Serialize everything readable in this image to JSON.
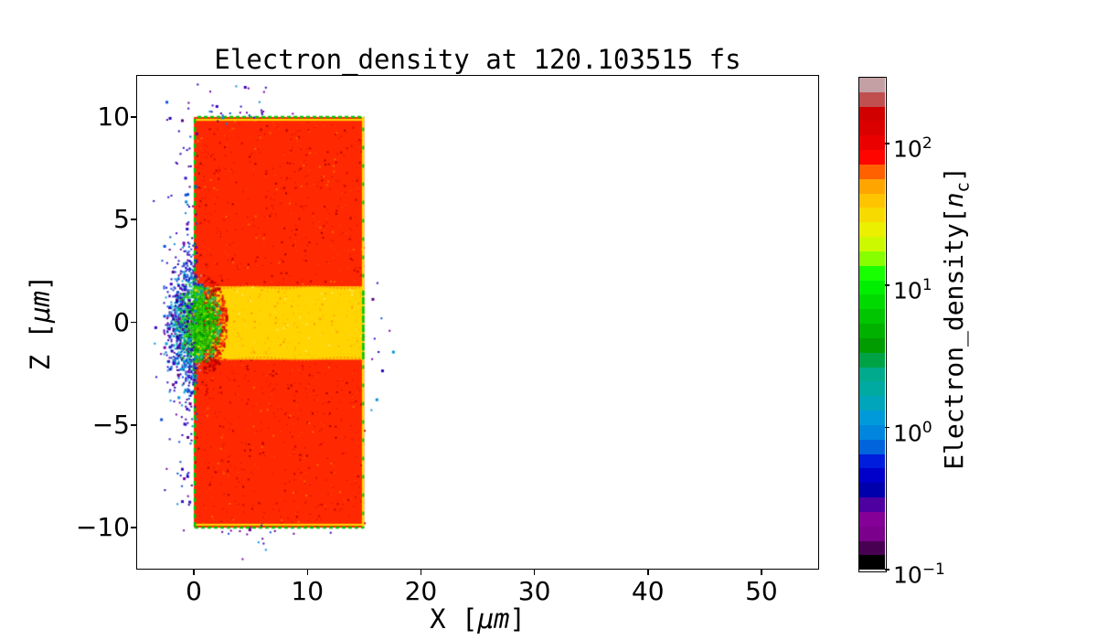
{
  "chart_data": {
    "type": "heatmap",
    "title": "Electron_density at 120.103515 fs",
    "xlabel_parts": {
      "pre": "X [",
      "unit": "μm",
      "post": "]"
    },
    "ylabel_parts": {
      "pre": "Z [",
      "unit": "μm",
      "post": "]"
    },
    "xlim": [
      -5,
      55
    ],
    "ylim": [
      -12,
      12
    ],
    "xticks": [
      0,
      10,
      20,
      30,
      40,
      50
    ],
    "xtick_labels": [
      "0",
      "10",
      "20",
      "30",
      "40",
      "50"
    ],
    "yticks": [
      10,
      5,
      0,
      -5,
      -10
    ],
    "ytick_labels": [
      "10",
      "5",
      "0",
      "−5",
      "−10"
    ],
    "grid": false,
    "background": "#ffffff",
    "target": {
      "x": [
        0,
        15
      ],
      "z": [
        -10,
        10
      ],
      "color": "#FF2800",
      "noise_colors": [
        "#DC0600",
        "#C30000",
        "#FF6A00",
        "#A80000"
      ],
      "noise_count": 1100
    },
    "channel": {
      "x": [
        0,
        15
      ],
      "z": [
        -1.82,
        1.75
      ],
      "color": "#FFD400",
      "edge_color": "#FF9400",
      "noise_colors": [
        "#FFB000",
        "#FF9800",
        "#FFE860"
      ],
      "noise_count": 260
    },
    "edges": {
      "green": "#00C800",
      "yellow": "#FFDC00"
    },
    "plume": {
      "cx": 0.5,
      "cz": -0.05,
      "r": 2.15,
      "greens": [
        "#00B800",
        "#00A000",
        "#00CC00",
        "#008C00",
        "#28D400"
      ],
      "teals": [
        "#00AA96",
        "#00A57A"
      ],
      "cyans": [
        "#009CD2",
        "#00AEBE"
      ],
      "blues": [
        "#1E14C8",
        "#0050D8",
        "#4600B4"
      ],
      "reds": [
        "#E51400",
        "#C80000",
        "#FF2800",
        "#B40000"
      ],
      "accents": [
        "#8CE100",
        "#EBEF00"
      ],
      "gray_specks": [
        [
          0.3,
          2.15
        ],
        [
          0.55,
          2.32
        ],
        [
          0.2,
          -2.08
        ],
        [
          0.45,
          -2.3
        ],
        [
          0.15,
          2.0
        ],
        [
          0.4,
          -2.0
        ]
      ],
      "gray": "#9E9EA0"
    },
    "dot_colors": [
      "#2C0EC8",
      "#1B00B7",
      "#5E0087",
      "#7A00A5",
      "#0A51D8",
      "#3A00C0",
      "#0090D5"
    ],
    "scatter_clusters": [
      {
        "name": "left-cloud-core",
        "cx": -1.15,
        "cz": -0.3,
        "sx": 0.8,
        "sz": 2.0,
        "n": 150,
        "clip": "left"
      },
      {
        "name": "left-cloud-wide",
        "cx": -1.0,
        "cz": 0.2,
        "sx": 1.05,
        "sz": 4.2,
        "n": 85,
        "clip": "left"
      },
      {
        "name": "left-edge-column",
        "cx": -0.35,
        "cz": 0.0,
        "sx": 0.4,
        "sz": 5.6,
        "n": 55,
        "clip": "left"
      },
      {
        "name": "top-edge",
        "cx": 4.0,
        "cz": 10.35,
        "sx": 2.6,
        "sz": 0.38,
        "n": 26,
        "clip": "none"
      },
      {
        "name": "top-high",
        "cx": 2.8,
        "cz": 11.45,
        "sx": 1.3,
        "sz": 0.28,
        "n": 4,
        "clip": "none"
      },
      {
        "name": "right-side",
        "cx": 16.0,
        "cz": 0.2,
        "sx": 0.9,
        "sz": 2.6,
        "n": 15,
        "clip": "right"
      },
      {
        "name": "bottom-below",
        "cx": 5.3,
        "cz": -10.9,
        "sx": 1.2,
        "sz": 0.5,
        "n": 8,
        "clip": "none"
      },
      {
        "name": "bottom-edge",
        "cx": 5.0,
        "cz": -10.1,
        "sx": 2.8,
        "sz": 0.15,
        "n": 9,
        "clip": "none"
      },
      {
        "name": "bottom-left-tail",
        "cx": -0.9,
        "cz": -7.6,
        "sx": 0.5,
        "sz": 1.0,
        "n": 6,
        "clip": "left"
      },
      {
        "name": "top-left-tail",
        "cx": -0.9,
        "cz": 8.0,
        "sx": 0.6,
        "sz": 1.2,
        "n": 6,
        "clip": "left"
      }
    ],
    "colorbar": {
      "label_parts": {
        "pre": "Electron_density[",
        "var": "n",
        "sub": "c",
        "post": "]"
      },
      "vmin": 0.1,
      "vmax": 290,
      "scale": "log",
      "colormap_name": "nipy_spectral (discrete, 34 bands)",
      "colors": [
        "#000000",
        "#480052",
        "#7B008C",
        "#850096",
        "#4E00A0",
        "#0000AC",
        "#0000CA",
        "#001DDD",
        "#0065DD",
        "#0086DD",
        "#009ADA",
        "#00A4BB",
        "#00AAA1",
        "#00AA8C",
        "#00A246",
        "#009C00",
        "#00B100",
        "#00C500",
        "#00DA00",
        "#00EF00",
        "#17FF00",
        "#88FF00",
        "#CCF900",
        "#EBEF00",
        "#F7DB00",
        "#FFC400",
        "#FFA500",
        "#FF6100",
        "#FF0500",
        "#EB0000",
        "#DA0000",
        "#D00000",
        "#C05050",
        "#C4A0A4"
      ],
      "ticks": [
        {
          "value": 100,
          "base": "10",
          "exp": "2"
        },
        {
          "value": 10,
          "base": "10",
          "exp": "1"
        },
        {
          "value": 1,
          "base": "10",
          "exp": "0"
        },
        {
          "value": 0.1,
          "base": "10",
          "exp": "−1"
        }
      ]
    }
  }
}
